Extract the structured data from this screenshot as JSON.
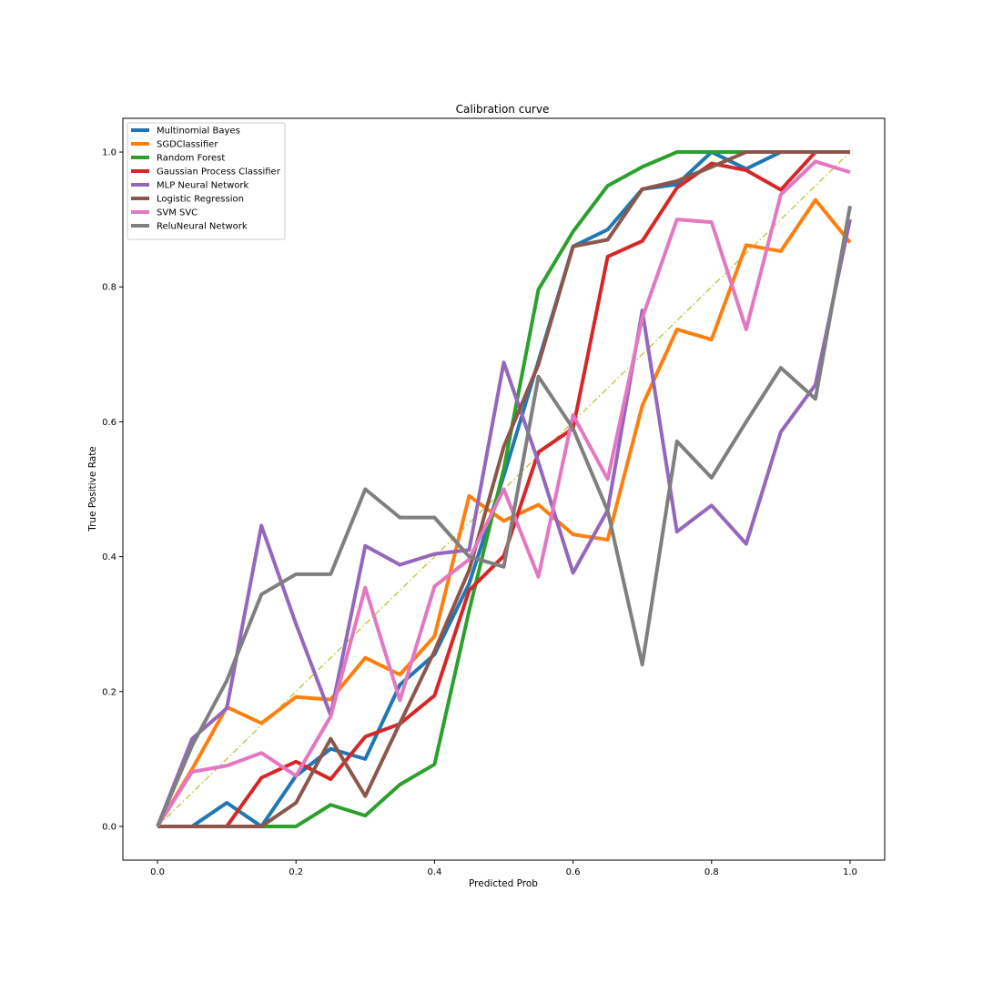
{
  "chart_data": {
    "type": "line",
    "title": "Calibration curve",
    "xlabel": "Predicted Prob",
    "ylabel": "True Positive Rate",
    "xlim": [
      -0.05,
      1.05
    ],
    "ylim": [
      -0.05,
      1.05
    ],
    "xticks": [
      0.0,
      0.2,
      0.4,
      0.6,
      0.8,
      1.0
    ],
    "yticks": [
      0.0,
      0.2,
      0.4,
      0.6,
      0.8,
      1.0
    ],
    "xtick_labels": [
      "0.0",
      "0.2",
      "0.4",
      "0.6",
      "0.8",
      "1.0"
    ],
    "ytick_labels": [
      "0.0",
      "0.2",
      "0.4",
      "0.6",
      "0.8",
      "1.0"
    ],
    "grid": false,
    "legend_position": "top-left",
    "x": [
      0.0,
      0.05,
      0.1,
      0.15,
      0.2,
      0.25,
      0.3,
      0.35,
      0.4,
      0.45,
      0.5,
      0.55,
      0.6,
      0.65,
      0.7,
      0.75,
      0.8,
      0.85,
      0.9,
      0.95,
      1.0
    ],
    "reference_line": {
      "x": [
        0.0,
        1.0
      ],
      "y": [
        0.0,
        1.0
      ],
      "color": "#bcbd22",
      "style": "dash-dot"
    },
    "series": [
      {
        "name": "Multinomial Bayes",
        "color": "#1f77b4",
        "values": [
          0.0,
          0.0,
          0.035,
          0.0,
          0.075,
          0.115,
          0.1,
          0.21,
          0.255,
          0.36,
          0.52,
          0.69,
          0.86,
          0.885,
          0.945,
          0.952,
          1.0,
          0.975,
          1.0,
          1.0,
          1.0
        ]
      },
      {
        "name": "SGDClassifier",
        "color": "#ff7f0e",
        "values": [
          0.0,
          0.085,
          0.177,
          0.153,
          0.192,
          0.188,
          0.25,
          0.225,
          0.282,
          0.49,
          0.453,
          0.477,
          0.433,
          0.425,
          0.624,
          0.737,
          0.722,
          0.862,
          0.853,
          0.929,
          0.866
        ]
      },
      {
        "name": "Random Forest",
        "color": "#2ca02c",
        "values": [
          0.0,
          0.0,
          0.0,
          0.0,
          0.0,
          0.032,
          0.016,
          0.062,
          0.092,
          0.32,
          0.53,
          0.796,
          0.882,
          0.95,
          0.978,
          1.0,
          1.0,
          1.0,
          1.0,
          1.0,
          1.0
        ]
      },
      {
        "name": "Gaussian Process Classifier",
        "color": "#d62728",
        "values": [
          0.0,
          0.0,
          0.0,
          0.072,
          0.096,
          0.07,
          0.133,
          0.152,
          0.194,
          0.35,
          0.401,
          0.555,
          0.59,
          0.845,
          0.868,
          0.947,
          0.983,
          0.973,
          0.944,
          1.0,
          1.0
        ]
      },
      {
        "name": "MLP Neural Network",
        "color": "#9467bd",
        "values": [
          0.0,
          0.13,
          0.175,
          0.446,
          0.3,
          0.165,
          0.416,
          0.388,
          0.404,
          0.41,
          0.688,
          0.54,
          0.376,
          0.469,
          0.765,
          0.437,
          0.476,
          0.419,
          0.585,
          0.655,
          0.9
        ]
      },
      {
        "name": "Logistic Regression",
        "color": "#8c564b",
        "values": [
          0.0,
          0.0,
          0.0,
          0.0,
          0.035,
          0.13,
          0.045,
          0.153,
          0.26,
          0.38,
          0.563,
          0.685,
          0.86,
          0.87,
          0.945,
          0.957,
          0.978,
          1.0,
          1.0,
          1.0,
          1.0
        ]
      },
      {
        "name": "SVM SVC",
        "color": "#e377c2",
        "values": [
          0.0,
          0.081,
          0.09,
          0.109,
          0.075,
          0.163,
          0.354,
          0.187,
          0.356,
          0.396,
          0.5,
          0.37,
          0.61,
          0.515,
          0.754,
          0.9,
          0.896,
          0.737,
          0.937,
          0.986,
          0.97
        ]
      },
      {
        "name": "ReluNeural Network",
        "color": "#7f7f7f",
        "values": [
          0.0,
          0.12,
          0.216,
          0.344,
          0.374,
          0.374,
          0.5,
          0.458,
          0.458,
          0.4,
          0.385,
          0.667,
          0.59,
          0.468,
          0.24,
          0.571,
          0.517,
          0.6,
          0.68,
          0.634,
          0.92
        ]
      }
    ]
  }
}
